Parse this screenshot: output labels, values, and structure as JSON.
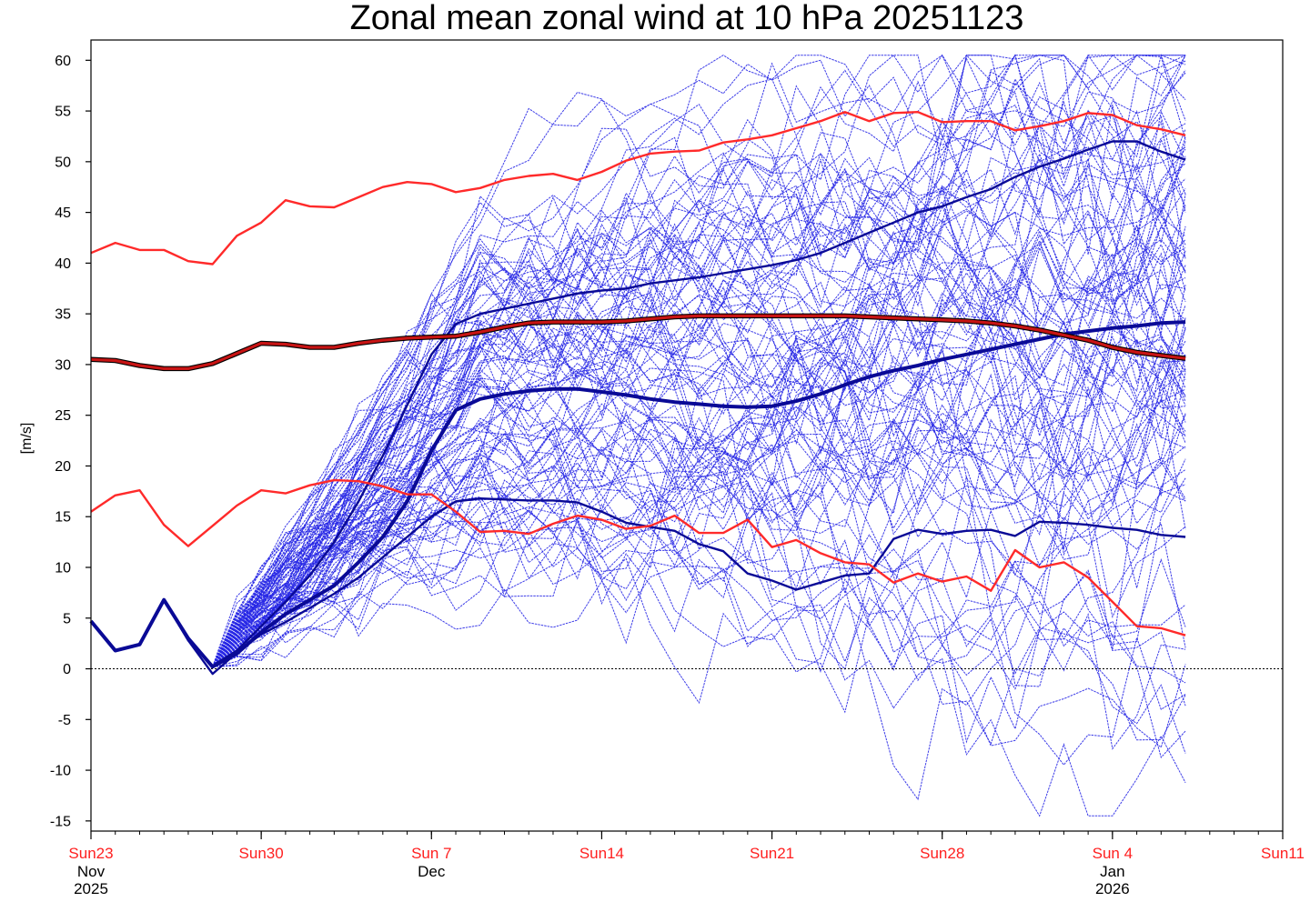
{
  "chart_data": {
    "type": "line",
    "title": "Zonal mean zonal wind at 10 hPa 20251123",
    "ylabel": "[m/s]",
    "xlabel": "",
    "ylim": [
      -16,
      62
    ],
    "xlim": [
      0,
      49
    ],
    "yticks": [
      60,
      55,
      50,
      45,
      40,
      35,
      30,
      25,
      20,
      15,
      10,
      5,
      0,
      -5,
      -10,
      -15
    ],
    "xticks": [
      {
        "x": 0,
        "label": "Sun23",
        "sub1": "Nov",
        "sub2": "2025"
      },
      {
        "x": 7,
        "label": "Sun30",
        "sub1": "",
        "sub2": ""
      },
      {
        "x": 14,
        "label": "Sun 7",
        "sub1": "Dec",
        "sub2": ""
      },
      {
        "x": 21,
        "label": "Sun14",
        "sub1": "",
        "sub2": ""
      },
      {
        "x": 28,
        "label": "Sun21",
        "sub1": "",
        "sub2": ""
      },
      {
        "x": 35,
        "label": "Sun28",
        "sub1": "",
        "sub2": ""
      },
      {
        "x": 42,
        "label": "Sun 4",
        "sub1": "Jan",
        "sub2": "2026"
      },
      {
        "x": 49,
        "label": "Sun11",
        "sub1": "",
        "sub2": ""
      }
    ],
    "zero_line": true,
    "grid": false,
    "ensemble_members": 100,
    "climatology_series": [
      {
        "role": "max",
        "color": "#ff2a2a",
        "values": [
          41,
          42,
          41.3,
          41.3,
          40.2,
          39.9,
          42.7,
          44,
          46.2,
          45.6,
          45.5,
          46.5,
          47.5,
          48,
          47.8,
          47,
          47.4,
          48.2,
          48.6,
          48.8,
          48.2,
          49,
          50.1,
          50.8,
          51,
          51.1,
          51.9,
          52.2,
          52.6,
          53.3,
          54,
          54.9,
          54,
          54.8,
          54.9,
          53.9,
          54,
          54,
          53.1,
          53.5,
          54,
          54.8,
          54.6,
          53.6,
          53.2,
          52.6
        ]
      },
      {
        "role": "mean",
        "color": "#c81414",
        "values": [
          30.5,
          30.4,
          29.9,
          29.6,
          29.6,
          30.1,
          31.1,
          32.1,
          32,
          31.7,
          31.7,
          32.1,
          32.4,
          32.6,
          32.7,
          32.8,
          33.2,
          33.7,
          34.1,
          34.2,
          34.2,
          34.2,
          34.3,
          34.5,
          34.7,
          34.8,
          34.8,
          34.8,
          34.8,
          34.8,
          34.8,
          34.8,
          34.7,
          34.6,
          34.5,
          34.4,
          34.3,
          34.1,
          33.8,
          33.4,
          32.9,
          32.4,
          31.7,
          31.2,
          30.9,
          30.6
        ]
      },
      {
        "role": "min",
        "color": "#ff2a2a",
        "values": [
          15.5,
          17.1,
          17.6,
          14.2,
          12.1,
          14.1,
          16.1,
          17.6,
          17.3,
          18.1,
          18.6,
          18.5,
          18,
          17.2,
          17.2,
          15.5,
          13.5,
          13.6,
          13.3,
          14.3,
          15.1,
          14.7,
          13.8,
          14.1,
          15.1,
          13.4,
          13.4,
          14.7,
          12,
          12.7,
          11.4,
          10.5,
          10.3,
          8.5,
          9.4,
          8.6,
          9.1,
          7.7,
          11.7,
          10,
          10.5,
          9,
          6.6,
          4.2,
          4,
          3.3
        ]
      }
    ],
    "ensemble_highlight_series": [
      {
        "role": "ensemble-mean",
        "color": "#0a0a96",
        "values": [
          4.7,
          1.8,
          2.4,
          6.8,
          3,
          0.2,
          1.5,
          3.6,
          5.4,
          6.8,
          8.2,
          10.5,
          13,
          16.5,
          21.5,
          25.5,
          26.6,
          27.1,
          27.4,
          27.6,
          27.6,
          27.3,
          27,
          26.6,
          26.3,
          26.1,
          25.9,
          25.8,
          25.9,
          26.4,
          27.1,
          28,
          28.8,
          29.4,
          29.9,
          30.5,
          31,
          31.5,
          32,
          32.5,
          33,
          33.3,
          33.6,
          33.8,
          34.1,
          34.2
        ]
      },
      {
        "role": "member-low",
        "color": "#0a0a96",
        "values": [
          4.7,
          1.8,
          2.4,
          6.8,
          2.8,
          -0.5,
          1.6,
          3.4,
          4.6,
          6,
          7.4,
          9,
          11,
          13,
          15,
          16.5,
          16.8,
          16.7,
          16.6,
          16.6,
          16.4,
          15.5,
          14.4,
          14,
          13.6,
          12.3,
          11.6,
          9.4,
          8.7,
          7.8,
          8.5,
          9.2,
          9.4,
          12.8,
          13.7,
          13.3,
          13.6,
          13.7,
          13.1,
          14.5,
          14.4,
          14.2,
          13.9,
          13.7,
          13.2,
          13
        ]
      },
      {
        "role": "member-high",
        "color": "#0a0a96",
        "values": [
          4.7,
          1.8,
          2.4,
          6.8,
          2.8,
          0.3,
          1.8,
          4.2,
          6.6,
          9.2,
          12.5,
          16.5,
          21,
          26,
          31,
          34,
          35,
          35.5,
          36,
          36.5,
          37,
          37.3,
          37.5,
          38,
          38.3,
          38.6,
          39,
          39.4,
          39.8,
          40.3,
          41,
          42,
          43,
          44,
          45,
          45.6,
          46.5,
          47.3,
          48.5,
          49.5,
          50.3,
          51.2,
          52,
          52,
          51,
          50.2
        ]
      }
    ]
  }
}
